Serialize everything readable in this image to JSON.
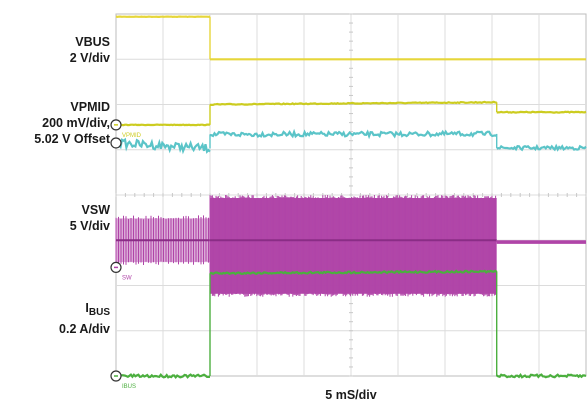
{
  "chart_data": {
    "type": "line",
    "title": "",
    "xlabel": "5 mS/div",
    "x_divisions": 10,
    "y_divisions": 8,
    "grid": true,
    "channels": [
      {
        "id": "vbus",
        "label_lines": [
          "VBUS",
          "2 V/div"
        ],
        "color": "#e6d63a",
        "segments": [
          {
            "t": [
              0.0,
              2.0
            ],
            "level": 0.06,
            "noise": 0.004
          },
          {
            "t": [
              2.0,
              10.0
            ],
            "level": 1.0,
            "noise": 0.0
          }
        ]
      },
      {
        "id": "vpmid",
        "label_lines": [
          "VPMID",
          "200 mV/div,",
          "5.02 V Offset"
        ],
        "color": "#cccc20",
        "marker_text": "VPMID",
        "segments": [
          {
            "t": [
              0.0,
              2.0
            ],
            "level": 2.45,
            "noise": 0.006
          },
          {
            "t": [
              2.0,
              8.1
            ],
            "level": 2.0,
            "noise": 0.01,
            "slope": -0.05
          },
          {
            "t": [
              8.1,
              10.0
            ],
            "level": 2.17,
            "noise": 0.01
          }
        ]
      },
      {
        "id": "vpmid2",
        "label_lines": [],
        "color": "#5bc4c8",
        "segments": [
          {
            "t": [
              0.0,
              2.0
            ],
            "level": 2.85,
            "noise": 0.09,
            "slope": 0.12
          },
          {
            "t": [
              2.0,
              8.1
            ],
            "level": 2.66,
            "noise": 0.05,
            "slope": -0.01
          },
          {
            "t": [
              8.1,
              10.0
            ],
            "level": 2.96,
            "noise": 0.04
          }
        ]
      },
      {
        "id": "vsw",
        "label_lines": [
          "VSW",
          "5 V/div"
        ],
        "color": "#b044a8",
        "marker_text": "SW",
        "segments": [
          {
            "t": [
              0.0,
              2.0
            ],
            "band": [
              4.45,
              5.55
            ],
            "center": 5.0
          },
          {
            "t": [
              2.0,
              8.1
            ],
            "band": [
              4.0,
              6.25
            ],
            "center": 5.0
          },
          {
            "t": [
              8.1,
              10.0
            ],
            "band": [
              5.0,
              5.08
            ],
            "center": 5.04
          }
        ]
      },
      {
        "id": "ibus",
        "label_lines": [
          "I",
          "BUS",
          "0.2 A/div"
        ],
        "color": "#4caf3f",
        "marker_text": "IBUS",
        "segments": [
          {
            "t": [
              0.0,
              2.0
            ],
            "level": 8.0,
            "noise": 0.03
          },
          {
            "t": [
              2.0,
              8.1
            ],
            "level": 5.73,
            "noise": 0.02,
            "slope": -0.04
          },
          {
            "t": [
              8.1,
              10.0
            ],
            "level": 8.0,
            "noise": 0.03
          }
        ]
      }
    ]
  }
}
